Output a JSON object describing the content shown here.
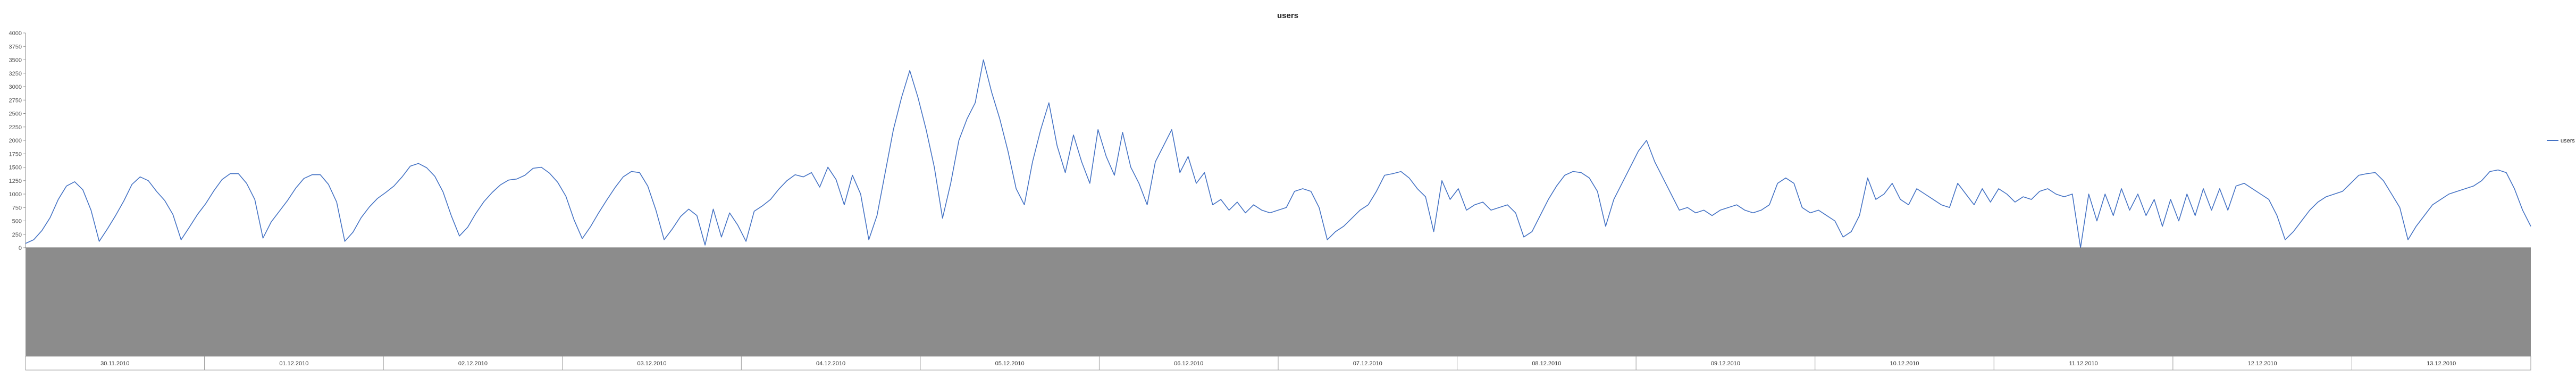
{
  "chart_data": {
    "type": "line",
    "title": "users",
    "xlabel": "",
    "ylabel": "",
    "ylim": [
      0,
      4000
    ],
    "yticks": [
      0,
      250,
      500,
      750,
      1000,
      1250,
      1500,
      1750,
      2000,
      2250,
      2500,
      2750,
      3000,
      3250,
      3500,
      3750,
      4000
    ],
    "ytick_labels": [
      "0",
      "250",
      "500",
      "750",
      "1000",
      "1250",
      "1500",
      "1750",
      "2000",
      "2250",
      "2500",
      "2750",
      "3000",
      "3250",
      "3500",
      "3750",
      "4000"
    ],
    "grid": false,
    "legend_position": "right",
    "series": [
      {
        "name": "users",
        "color": "#4472C4",
        "values": [
          80,
          150,
          320,
          560,
          900,
          1150,
          1230,
          1080,
          700,
          120,
          350,
          600,
          870,
          1180,
          1320,
          1250,
          1050,
          880,
          620,
          150,
          380,
          620,
          820,
          1060,
          1270,
          1380,
          1380,
          1200,
          900,
          180,
          480,
          680,
          880,
          1110,
          1290,
          1360,
          1360,
          1180,
          850,
          120,
          290,
          560,
          760,
          920,
          1030,
          1150,
          1320,
          1520,
          1570,
          1490,
          1330,
          1040,
          600,
          220,
          380,
          640,
          860,
          1030,
          1170,
          1260,
          1280,
          1350,
          1480,
          1500,
          1390,
          1220,
          960,
          520,
          170,
          390,
          650,
          890,
          1120,
          1320,
          1420,
          1400,
          1150,
          700,
          150,
          350,
          580,
          720,
          600,
          50,
          720,
          200,
          650,
          420,
          120,
          680,
          780,
          900,
          1090,
          1250,
          1360,
          1320,
          1400,
          1130,
          1500,
          1270,
          800,
          1350,
          1000,
          150,
          600,
          1400,
          2200,
          2800,
          3300,
          2800,
          2200,
          1500,
          550,
          1200,
          2000,
          2400,
          2700,
          3500,
          2900,
          2400,
          1800,
          1100,
          800,
          1600,
          2200,
          2700,
          1900,
          1400,
          2100,
          1600,
          1200,
          2200,
          1700,
          1350,
          2150,
          1500,
          1200,
          800,
          1600,
          1900,
          2200,
          1400,
          1700,
          1200,
          1400,
          800,
          900,
          700,
          850,
          650,
          800,
          700,
          650,
          700,
          750,
          1050,
          1100,
          1050,
          750,
          150,
          300,
          400,
          550,
          700,
          800,
          1050,
          1350,
          1380,
          1420,
          1300,
          1100,
          950,
          300,
          1250,
          900,
          1100,
          700,
          800,
          850,
          700,
          750,
          800,
          650,
          200,
          300,
          600,
          900,
          1150,
          1350,
          1420,
          1400,
          1300,
          1050,
          400,
          900,
          1200,
          1500,
          1800,
          2000,
          1600,
          1300,
          1000,
          700,
          750,
          650,
          700,
          600,
          700,
          750,
          800,
          700,
          650,
          700,
          800,
          1200,
          1300,
          1200,
          750,
          650,
          700,
          600,
          500,
          200,
          300,
          600,
          1300,
          900,
          1000,
          1200,
          900,
          800,
          1100,
          1000,
          900,
          800,
          750,
          1200,
          1000,
          800,
          1100,
          850,
          1100,
          1000,
          850,
          950,
          900,
          1050,
          1100,
          1000,
          950,
          1000,
          0,
          1000,
          500,
          1000,
          600,
          1100,
          700,
          1000,
          600,
          900,
          400,
          900,
          500,
          1000,
          600,
          1100,
          700,
          1100,
          700,
          1150,
          1200,
          1100,
          1000,
          900,
          600,
          150,
          300,
          500,
          700,
          850,
          950,
          1000,
          1050,
          1200,
          1350,
          1380,
          1400,
          1250,
          1000,
          750,
          150,
          400,
          600,
          800,
          900,
          1000,
          1050,
          1100,
          1150,
          1250,
          1420,
          1450,
          1400,
          1100,
          700,
          400
        ]
      }
    ],
    "x_date_labels": [
      "30.11.2010",
      "01.12.2010",
      "02.12.2010",
      "03.12.2010",
      "04.12.2010",
      "05.12.2010",
      "06.12.2010",
      "07.12.2010",
      "08.12.2010",
      "09.12.2010",
      "10.12.2010",
      "11.12.2010",
      "12.12.2010",
      "13.12.2010"
    ]
  }
}
